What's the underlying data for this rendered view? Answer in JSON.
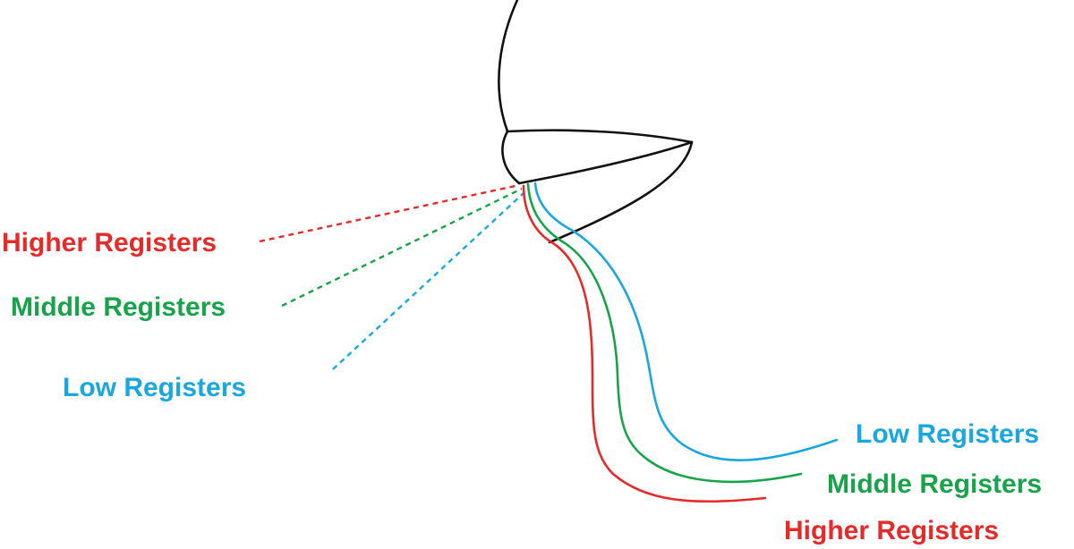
{
  "colors": {
    "outline": "#111111",
    "higher": "#e52a2a",
    "middle": "#17a34a",
    "low": "#1aa7e0"
  },
  "labels": {
    "left_higher": "Higher Registers",
    "left_middle": "Middle Registers",
    "left_low": "Low Registers",
    "right_low": "Low Registers",
    "right_middle": "Middle Registers",
    "right_higher": "Higher Registers"
  }
}
